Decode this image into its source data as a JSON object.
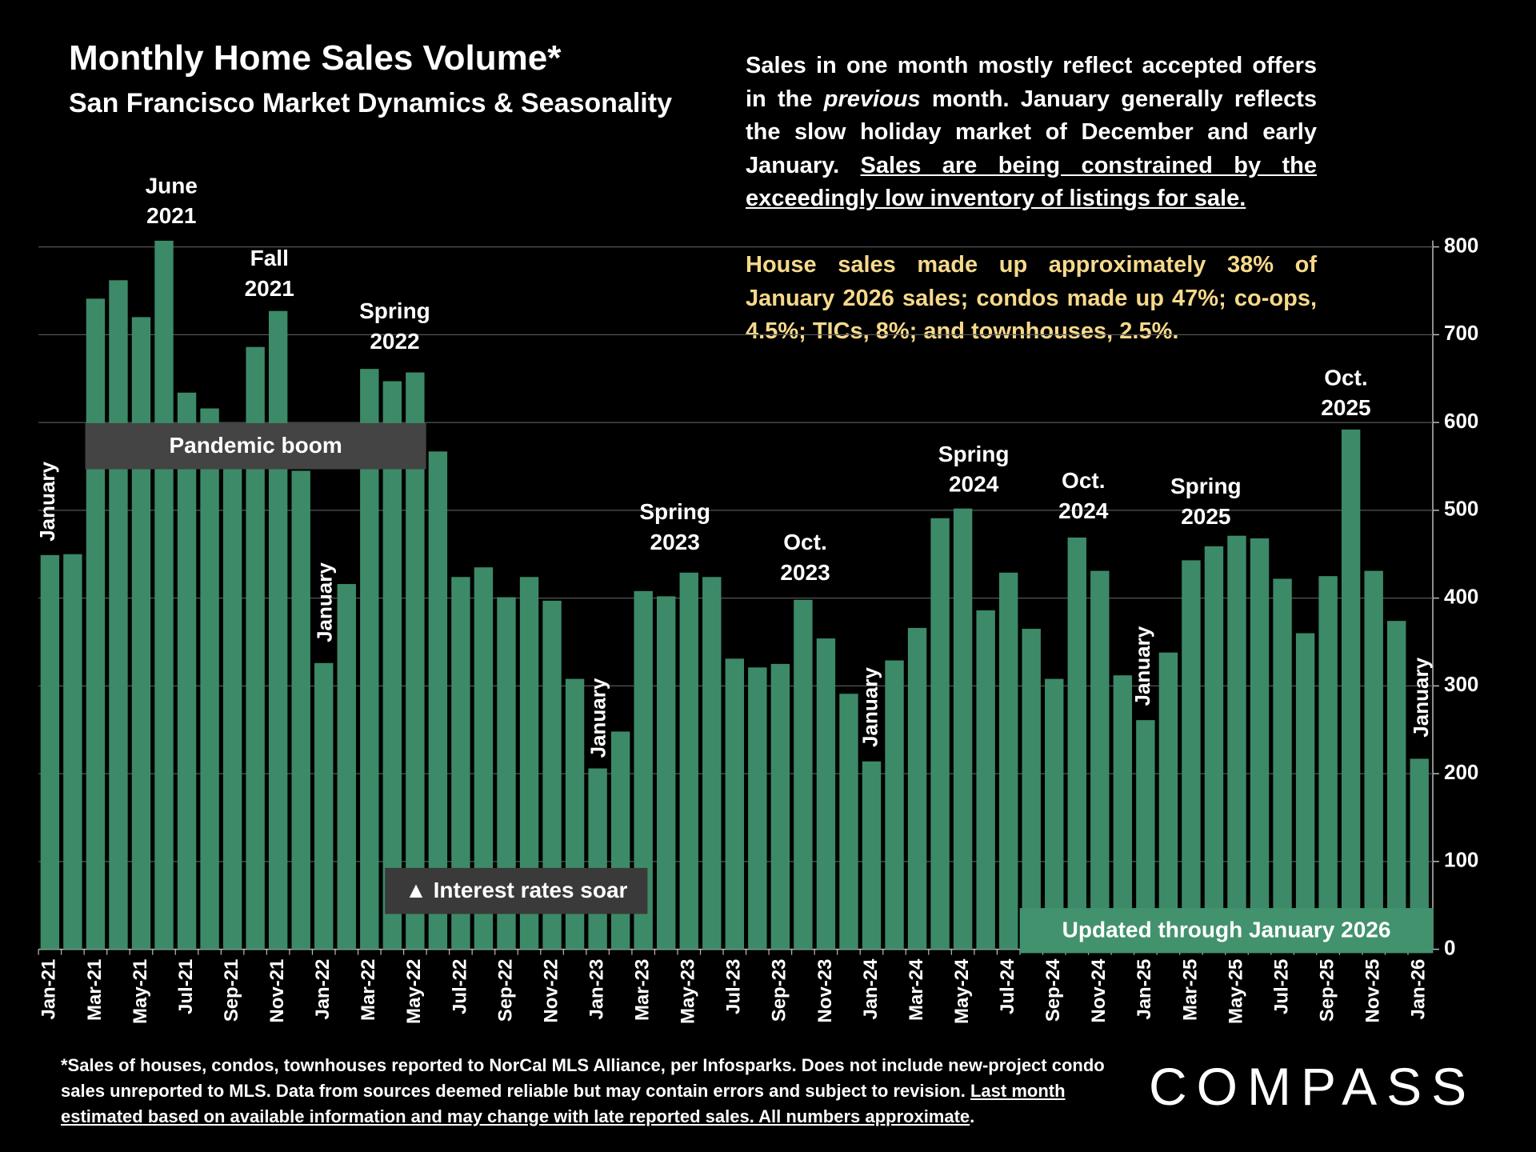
{
  "chart_data": {
    "type": "bar",
    "title": "Monthly Home Sales Volume*",
    "subtitle": "San Francisco Market Dynamics & Seasonality",
    "categories": [
      "Jan-21",
      null,
      "Mar-21",
      null,
      "May-21",
      null,
      "Jul-21",
      null,
      "Sep-21",
      null,
      "Nov-21",
      null,
      "Jan-22",
      null,
      "Mar-22",
      null,
      "May-22",
      null,
      "Jul-22",
      null,
      "Sep-22",
      null,
      "Nov-22",
      null,
      "Jan-23",
      null,
      "Mar-23",
      null,
      "May-23",
      null,
      "Jul-23",
      null,
      "Sep-23",
      null,
      "Nov-23",
      null,
      "Jan-24",
      null,
      "Mar-24",
      null,
      "May-24",
      null,
      "Jul-24",
      null,
      "Sep-24",
      null,
      "Nov-24",
      null,
      "Jan-25",
      null,
      "Mar-25",
      null,
      "May-25",
      null,
      "Jul-25",
      null,
      "Sep-25",
      null,
      "Nov-25",
      null,
      "Jan-26"
    ],
    "values": [
      449,
      450,
      741,
      762,
      720,
      807,
      634,
      616,
      570,
      686,
      727,
      545,
      326,
      416,
      661,
      647,
      657,
      567,
      424,
      435,
      401,
      424,
      397,
      308,
      206,
      248,
      408,
      402,
      429,
      424,
      331,
      321,
      325,
      398,
      354,
      291,
      214,
      329,
      366,
      491,
      502,
      386,
      429,
      365,
      308,
      469,
      431,
      312,
      261,
      338,
      443,
      459,
      471,
      468,
      422,
      360,
      425,
      592,
      431,
      374,
      217
    ],
    "color": "#3d8a68",
    "ylim": [
      0,
      800
    ],
    "yticks": [
      0,
      100,
      200,
      300,
      400,
      500,
      600,
      700,
      800
    ],
    "grid": true,
    "y_axis_side": "right",
    "period_labels": [
      [
        "June",
        "2021"
      ],
      [
        "Fall",
        "2021"
      ],
      [
        "Spring",
        "2022"
      ],
      [
        "Spring",
        "2023"
      ],
      [
        "Oct.",
        "2023"
      ],
      [
        "Spring",
        "2024"
      ],
      [
        "Oct.",
        "2024"
      ],
      [
        "Spring",
        "2025"
      ],
      [
        "Oct.",
        "2025"
      ]
    ],
    "january_labels": [
      "January",
      "January",
      "January",
      "January",
      "January",
      "January"
    ],
    "callouts": [
      "Pandemic boom",
      "▲ Interest rates soar",
      "Updated through January 2026"
    ]
  },
  "notes": {
    "paragraph1": [
      "Sales in one month mostly reflect accepted offers in the ",
      "previous",
      " month. January generally reflects the slow holiday market of December and early January. ",
      "Sales are being constrained by the exceedingly low inventory of listings for sale."
    ],
    "paragraph2": "House sales made up approximately 38% of January 2026 sales; condos made up 47%; co-ops, 4.5%; TICs, 8%; and townhouses, 2.5%."
  },
  "footnote": [
    "*Sales of houses, condos, townhouses reported to NorCal MLS Alliance, per Infosparks. Does not include new-project condo sales unreported to MLS. Data from sources deemed reliable but may contain errors and subject to revision. ",
    "Last month estimated based on available information and may change with late reported sales. All numbers approximate",
    "."
  ],
  "logo": "COMPASS"
}
